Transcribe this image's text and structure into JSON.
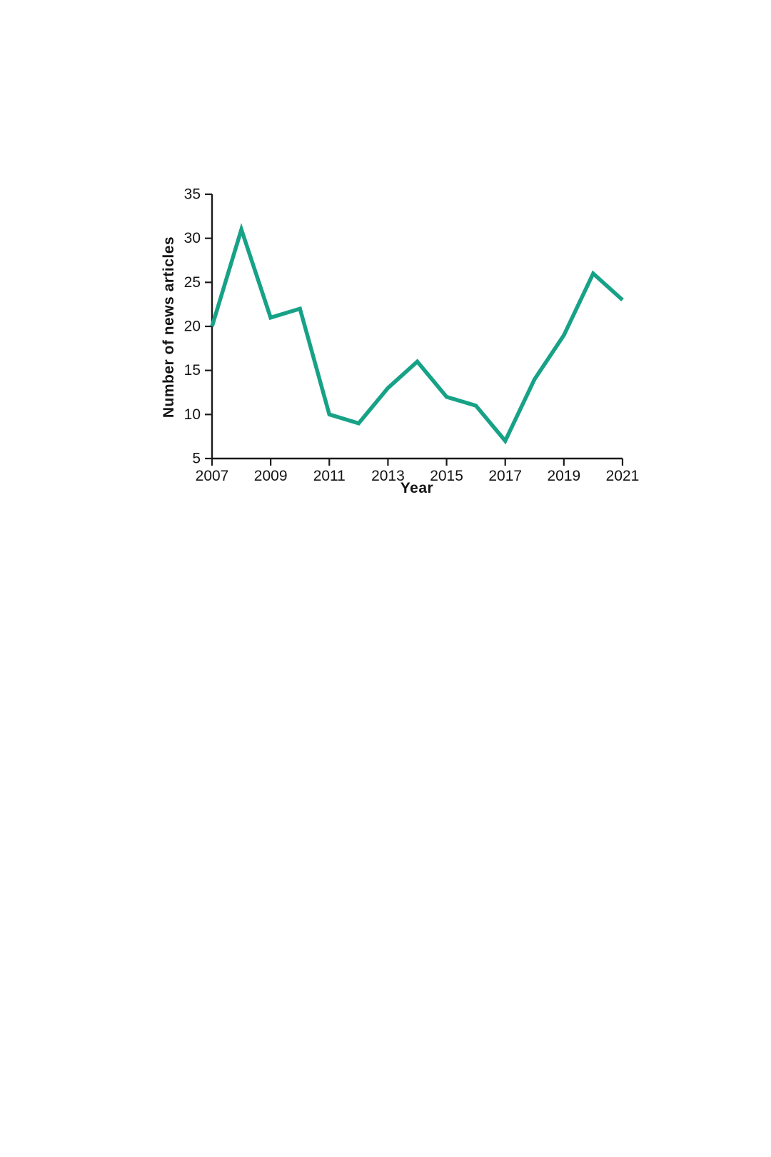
{
  "page": {
    "background": "#ffffff"
  },
  "chart_data": {
    "type": "line",
    "title": "",
    "xlabel": "Year",
    "ylabel": "Number of news articles",
    "x": [
      2007,
      2008,
      2009,
      2010,
      2011,
      2012,
      2013,
      2014,
      2015,
      2016,
      2017,
      2018,
      2019,
      2020,
      2021
    ],
    "values": [
      20,
      31,
      21,
      22,
      10,
      9,
      13,
      16,
      12,
      11,
      7,
      14,
      19,
      26,
      23
    ],
    "xlim": [
      2007,
      2021
    ],
    "ylim": [
      5,
      35
    ],
    "x_ticks": [
      2007,
      2009,
      2011,
      2013,
      2015,
      2017,
      2019,
      2021
    ],
    "y_ticks": [
      5,
      10,
      15,
      20,
      25,
      30,
      35
    ],
    "grid": false,
    "legend": "none",
    "line_color": "#17a287",
    "axis_color": "#1a1a1a",
    "tick_label_color": "#141414"
  }
}
